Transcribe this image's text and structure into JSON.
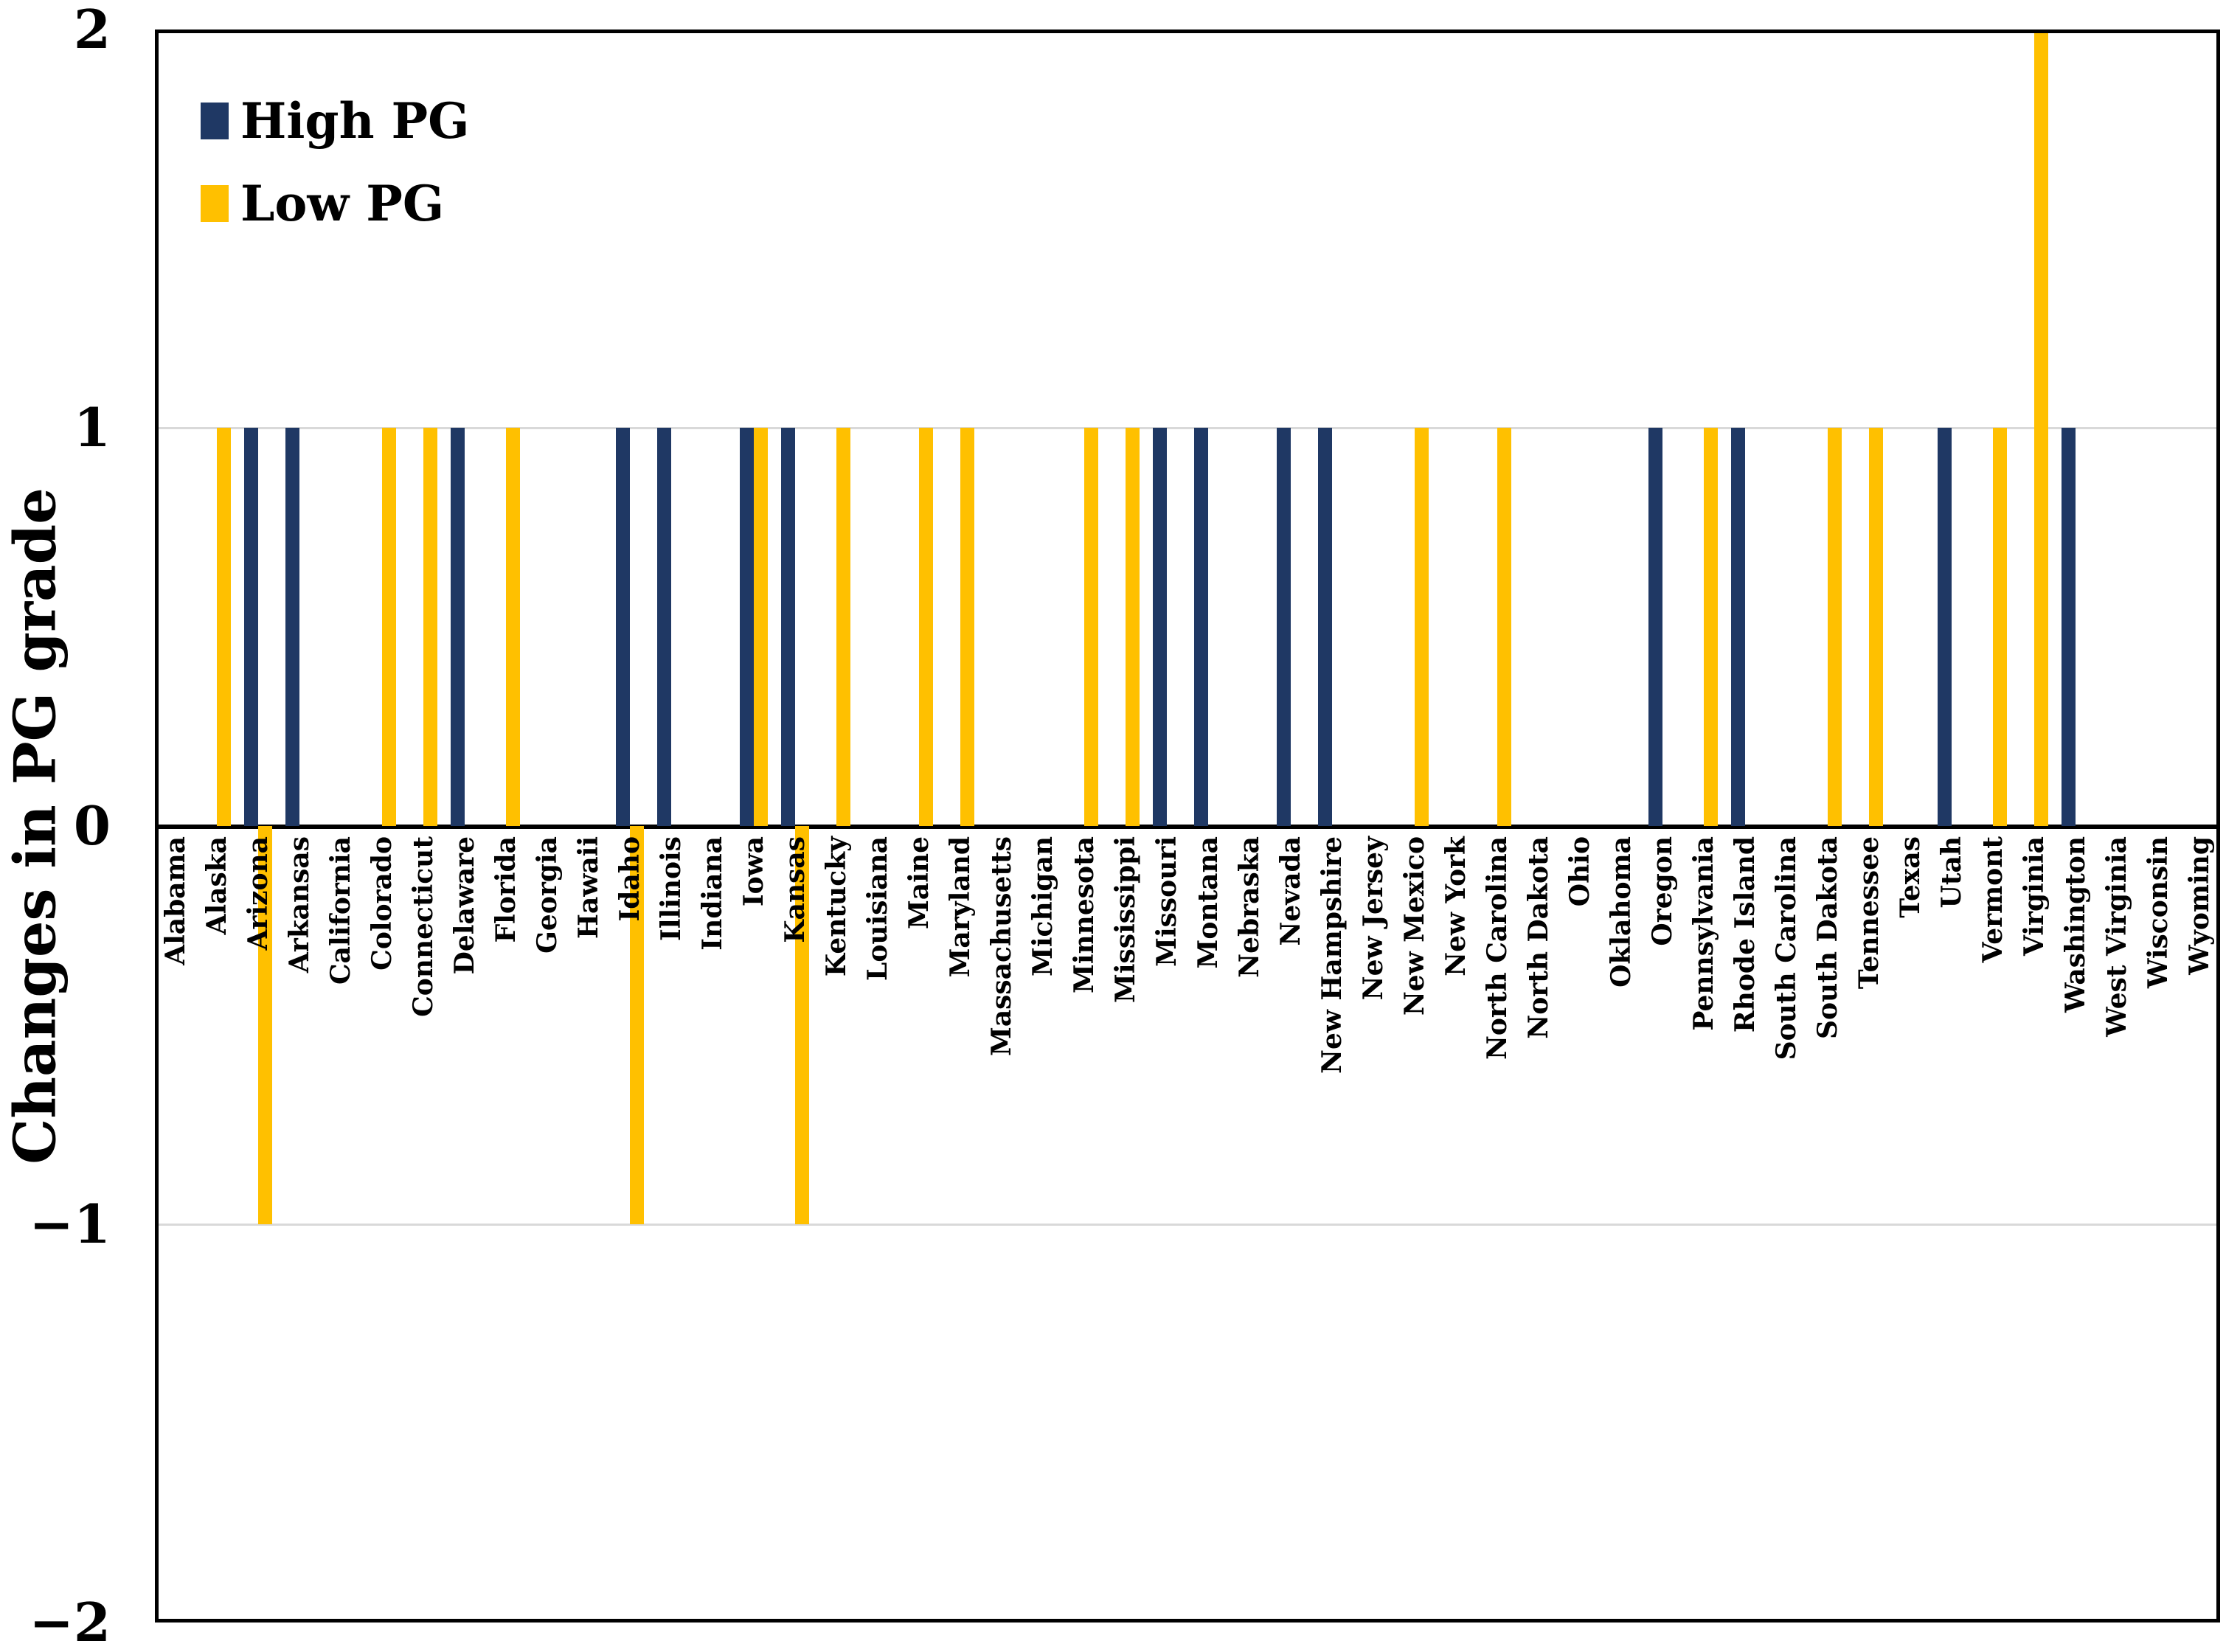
{
  "chart_data": {
    "type": "bar",
    "title": "",
    "xlabel": "",
    "ylabel": "Changes in PG grade",
    "ylim": [
      -2,
      2
    ],
    "ytick_values": [
      2,
      1,
      0,
      -1,
      -2
    ],
    "ytick_labels": [
      "2",
      "1",
      "0",
      "−1",
      "−2"
    ],
    "gridlines_at": [
      1,
      -1
    ],
    "grid": "horizontal",
    "legend_position": "top-left-inside",
    "categories": [
      "Alabama",
      "Alaska",
      "Arizona",
      "Arkansas",
      "California",
      "Colorado",
      "Connecticut",
      "Delaware",
      "Florida",
      "Georgia",
      "Hawaii",
      "Idaho",
      "Illinois",
      "Indiana",
      "Iowa",
      "Kansas",
      "Kentucky",
      "Louisiana",
      "Maine",
      "Maryland",
      "Massachusetts",
      "Michigan",
      "Minnesota",
      "Mississippi",
      "Missouri",
      "Montana",
      "Nebraska",
      "Nevada",
      "New Hampshire",
      "New Jersey",
      "New Mexico",
      "New York",
      "North Carolina",
      "North Dakota",
      "Ohio",
      "Oklahoma",
      "Oregon",
      "Pennsylvania",
      "Rhode Island",
      "South Carolina",
      "South Dakota",
      "Tennessee",
      "Texas",
      "Utah",
      "Vermont",
      "Virginia",
      "Washington",
      "West Virginia",
      "Wisconsin",
      "Wyoming"
    ],
    "series": [
      {
        "name": "High PG",
        "color": "#1F3864",
        "values": [
          0,
          0,
          1,
          1,
          0,
          0,
          0,
          1,
          0,
          0,
          0,
          1,
          1,
          0,
          1,
          1,
          0,
          0,
          0,
          0,
          0,
          0,
          0,
          0,
          1,
          1,
          0,
          1,
          1,
          0,
          0,
          0,
          0,
          0,
          0,
          0,
          1,
          0,
          1,
          0,
          0,
          0,
          0,
          1,
          0,
          0,
          1,
          0,
          0,
          0
        ]
      },
      {
        "name": "Low PG",
        "color": "#FFC000",
        "values": [
          0,
          1,
          -1,
          0,
          0,
          1,
          1,
          0,
          1,
          0,
          0,
          -1,
          0,
          0,
          1,
          -1,
          1,
          0,
          1,
          1,
          0,
          0,
          1,
          1,
          0,
          0,
          0,
          0,
          0,
          0,
          1,
          0,
          1,
          0,
          0,
          0,
          0,
          1,
          0,
          0,
          1,
          1,
          0,
          0,
          1,
          2,
          0,
          0,
          0,
          0
        ]
      }
    ],
    "colors": {
      "axis": "#000000",
      "gridline": "#D9D9D9",
      "background": "#FFFFFF",
      "text": "#000000"
    }
  }
}
